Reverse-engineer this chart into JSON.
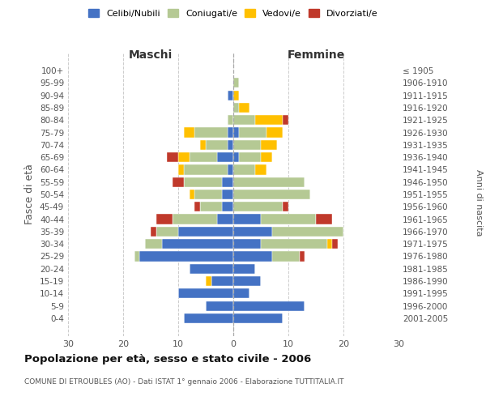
{
  "age_groups": [
    "100+",
    "95-99",
    "90-94",
    "85-89",
    "80-84",
    "75-79",
    "70-74",
    "65-69",
    "60-64",
    "55-59",
    "50-54",
    "45-49",
    "40-44",
    "35-39",
    "30-34",
    "25-29",
    "20-24",
    "15-19",
    "10-14",
    "5-9",
    "0-4"
  ],
  "birth_years": [
    "≤ 1905",
    "1906-1910",
    "1911-1915",
    "1916-1920",
    "1921-1925",
    "1926-1930",
    "1931-1935",
    "1936-1940",
    "1941-1945",
    "1946-1950",
    "1951-1955",
    "1956-1960",
    "1961-1965",
    "1966-1970",
    "1971-1975",
    "1976-1980",
    "1981-1985",
    "1986-1990",
    "1991-1995",
    "1996-2000",
    "2001-2005"
  ],
  "male_celibi": [
    0,
    0,
    1,
    0,
    0,
    1,
    1,
    3,
    1,
    2,
    2,
    2,
    3,
    10,
    13,
    17,
    8,
    4,
    10,
    5,
    9
  ],
  "male_coniugati": [
    0,
    0,
    0,
    0,
    1,
    6,
    4,
    5,
    8,
    7,
    5,
    4,
    8,
    4,
    3,
    1,
    0,
    0,
    0,
    0,
    0
  ],
  "male_vedovi": [
    0,
    0,
    0,
    0,
    0,
    2,
    1,
    2,
    1,
    0,
    1,
    0,
    0,
    0,
    0,
    0,
    0,
    1,
    0,
    0,
    0
  ],
  "male_divorziati": [
    0,
    0,
    0,
    0,
    0,
    0,
    0,
    2,
    0,
    2,
    0,
    1,
    3,
    1,
    0,
    0,
    0,
    0,
    0,
    0,
    0
  ],
  "female_celibi": [
    0,
    0,
    0,
    0,
    0,
    1,
    0,
    1,
    0,
    0,
    0,
    0,
    5,
    7,
    5,
    7,
    4,
    5,
    3,
    13,
    9
  ],
  "female_coniugati": [
    0,
    1,
    0,
    1,
    4,
    5,
    5,
    4,
    4,
    13,
    14,
    9,
    10,
    13,
    12,
    5,
    0,
    0,
    0,
    0,
    0
  ],
  "female_vedovi": [
    0,
    0,
    1,
    2,
    5,
    3,
    3,
    2,
    2,
    0,
    0,
    0,
    0,
    0,
    1,
    0,
    0,
    0,
    0,
    0,
    0
  ],
  "female_divorziati": [
    0,
    0,
    0,
    0,
    1,
    0,
    0,
    0,
    0,
    0,
    0,
    1,
    3,
    0,
    1,
    1,
    0,
    0,
    0,
    0,
    0
  ],
  "colors": {
    "celibi": "#4472c4",
    "coniugati": "#b5c994",
    "vedovi": "#ffc000",
    "divorziati": "#c0392b"
  },
  "title": "Popolazione per età, sesso e stato civile - 2006",
  "subtitle": "COMUNE DI ETROUBLES (AO) - Dati ISTAT 1° gennaio 2006 - Elaborazione TUTTITALIA.IT",
  "ylabel_left": "Fasce di età",
  "ylabel_right": "Anni di nascita",
  "xlabel_left": "Maschi",
  "xlabel_right": "Femmine",
  "xlim": 30,
  "background_color": "#ffffff",
  "grid_color": "#cccccc"
}
